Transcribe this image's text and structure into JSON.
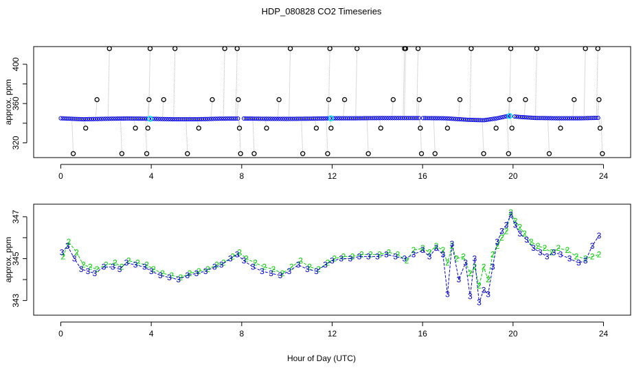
{
  "chart_data": [
    {
      "type": "line",
      "title": "HDP_080828  CO2 Timeseries",
      "xlabel": "",
      "ylabel": "approx. ppm",
      "xlim": [
        -1.2,
        25.2
      ],
      "ylim": [
        305,
        418
      ],
      "xticks": [
        0,
        4,
        8,
        12,
        16,
        20,
        24
      ],
      "xtick_labels": [
        "0",
        "4",
        "8",
        "12",
        "16",
        "20",
        "24"
      ],
      "yticks": [
        320,
        340,
        360,
        380,
        400
      ],
      "ytick_labels": [
        "320",
        "",
        "360",
        "",
        "400"
      ],
      "colors": {
        "baseline": "#0000ee",
        "marker": "#00e5ee",
        "spike": "#000000",
        "connector": "#b3b3b3"
      },
      "baseline": {
        "x": [
          0,
          1,
          2,
          3,
          4,
          5,
          6,
          7,
          8,
          9,
          10,
          11,
          12,
          13,
          14,
          15,
          16,
          17,
          18,
          18.7,
          19.3,
          19.8,
          20.2,
          21,
          22,
          23,
          23.8
        ],
        "y": [
          345,
          344,
          344.5,
          344.8,
          344.5,
          344,
          344,
          344.6,
          344.8,
          344.5,
          344.4,
          344.6,
          345,
          345,
          345.2,
          345.2,
          345.2,
          345,
          343.5,
          343,
          345,
          347.5,
          346.5,
          345.3,
          345,
          345,
          345.5
        ]
      },
      "markers_x": [
        3.95,
        11.95,
        19.85
      ],
      "spikes": {
        "x": [
          0.55,
          1.1,
          1.6,
          2.15,
          2.7,
          3.3,
          3.8,
          3.85,
          3.9,
          3.95,
          4.55,
          5.05,
          5.6,
          6.1,
          6.7,
          7.25,
          7.8,
          7.85,
          7.9,
          7.95,
          8.55,
          9.1,
          9.65,
          10.15,
          10.7,
          11.3,
          11.8,
          11.85,
          11.9,
          11.95,
          12.55,
          13.1,
          13.6,
          14.15,
          14.7,
          15.2,
          15.25,
          15.8,
          15.85,
          15.9,
          15.95,
          16.55,
          17.1,
          17.65,
          18.15,
          18.7,
          19.25,
          19.8,
          19.85,
          19.9,
          19.95,
          20.55,
          21.05,
          21.6,
          22.1,
          22.7,
          23.2,
          23.75,
          23.8,
          23.85,
          23.95
        ],
        "y": [
          309,
          335,
          364,
          416,
          309,
          335,
          309,
          335,
          364,
          416,
          364,
          416,
          309,
          335,
          364,
          416,
          416,
          364,
          335,
          309,
          309,
          335,
          364,
          416,
          309,
          335,
          309,
          364,
          416,
          335,
          364,
          416,
          309,
          335,
          364,
          416,
          416,
          416,
          364,
          335,
          309,
          309,
          335,
          364,
          416,
          309,
          335,
          309,
          364,
          416,
          335,
          364,
          416,
          309,
          335,
          364,
          416,
          416,
          364,
          335,
          309
        ]
      }
    },
    {
      "type": "line",
      "title": "",
      "xlabel": "Hour of Day (UTC)",
      "ylabel": "approx. ppm",
      "xlim": [
        -1.2,
        25.2
      ],
      "ylim": [
        342.3,
        347.6
      ],
      "xticks": [
        0,
        4,
        8,
        12,
        16,
        20,
        24
      ],
      "xtick_labels": [
        "0",
        "4",
        "8",
        "12",
        "16",
        "20",
        "24"
      ],
      "yticks": [
        343,
        344,
        345,
        346,
        347
      ],
      "ytick_labels": [
        "343",
        "",
        "345",
        "",
        "347"
      ],
      "series": [
        {
          "name": "2",
          "color": "#00cd00",
          "x": [
            0.1,
            0.35,
            0.7,
            1.0,
            1.3,
            1.6,
            2.0,
            2.4,
            2.7,
            3.0,
            3.4,
            3.8,
            4.1,
            4.5,
            4.9,
            5.3,
            5.7,
            6.1,
            6.5,
            6.9,
            7.2,
            7.6,
            7.9,
            8.2,
            8.6,
            9.0,
            9.4,
            9.8,
            10.2,
            10.6,
            11.0,
            11.4,
            11.8,
            12.1,
            12.5,
            12.9,
            13.3,
            13.7,
            14.1,
            14.5,
            14.9,
            15.3,
            15.6,
            16.0,
            16.3,
            16.6,
            16.9,
            17.1,
            17.3,
            17.5,
            17.8,
            18.1,
            18.3,
            18.5,
            18.7,
            18.9,
            19.1,
            19.3,
            19.5,
            19.7,
            19.9,
            20.1,
            20.3,
            20.5,
            20.8,
            21.1,
            21.4,
            21.7,
            22.0,
            22.4,
            22.8,
            23.2,
            23.5,
            23.8
          ],
          "y": [
            345.1,
            345.8,
            345.3,
            344.7,
            344.6,
            344.5,
            344.7,
            344.8,
            344.6,
            344.9,
            344.8,
            344.7,
            344.5,
            344.3,
            344.2,
            344.1,
            344.3,
            344.4,
            344.5,
            344.7,
            344.8,
            345.1,
            345.3,
            345.0,
            344.8,
            344.6,
            344.5,
            344.3,
            344.6,
            344.9,
            344.6,
            344.5,
            344.8,
            345.0,
            345.1,
            345.1,
            345.2,
            345.2,
            345.2,
            345.3,
            345.2,
            344.9,
            345.4,
            345.5,
            345.3,
            345.6,
            345.4,
            344.8,
            345.6,
            345.0,
            345.1,
            344.3,
            344.6,
            343.7,
            344.6,
            344.0,
            345.2,
            345.6,
            346.0,
            346.3,
            347.2,
            346.8,
            346.5,
            346.2,
            345.8,
            345.6,
            345.5,
            345.3,
            345.5,
            345.4,
            345.1,
            345.0,
            345.1,
            345.2
          ]
        },
        {
          "name": "3",
          "color": "#0000cd",
          "x": [
            0.05,
            0.3,
            0.6,
            0.9,
            1.2,
            1.5,
            1.9,
            2.3,
            2.6,
            2.9,
            3.3,
            3.7,
            4.0,
            4.4,
            4.8,
            5.2,
            5.6,
            6.0,
            6.4,
            6.8,
            7.1,
            7.5,
            7.8,
            8.1,
            8.5,
            8.9,
            9.3,
            9.7,
            10.1,
            10.5,
            10.9,
            11.3,
            11.7,
            12.0,
            12.4,
            12.8,
            13.2,
            13.6,
            14.0,
            14.4,
            14.8,
            15.2,
            15.6,
            16.0,
            16.3,
            16.6,
            16.9,
            17.1,
            17.3,
            17.6,
            17.9,
            18.1,
            18.3,
            18.5,
            18.7,
            18.9,
            19.1,
            19.3,
            19.5,
            19.7,
            19.9,
            20.1,
            20.3,
            20.6,
            20.9,
            21.2,
            21.5,
            21.8,
            22.1,
            22.5,
            22.9,
            23.2,
            23.5,
            23.8
          ],
          "y": [
            345.3,
            345.6,
            345.0,
            344.5,
            344.4,
            344.3,
            344.6,
            344.6,
            344.5,
            344.8,
            344.7,
            344.6,
            344.4,
            344.2,
            344.1,
            344.0,
            344.2,
            344.3,
            344.4,
            344.6,
            344.7,
            345.0,
            345.2,
            344.9,
            344.6,
            344.4,
            344.3,
            344.2,
            344.4,
            344.7,
            344.5,
            344.4,
            344.7,
            344.9,
            345.0,
            345.0,
            345.1,
            345.1,
            345.1,
            345.2,
            345.1,
            345.0,
            345.2,
            345.4,
            345.1,
            345.5,
            345.2,
            343.3,
            345.7,
            344.0,
            344.8,
            343.2,
            345.0,
            342.9,
            343.5,
            343.3,
            344.6,
            345.8,
            346.3,
            346.6,
            347.1,
            346.6,
            346.2,
            345.9,
            345.5,
            345.3,
            345.1,
            345.3,
            345.2,
            345.0,
            344.8,
            344.9,
            345.6,
            346.1
          ]
        }
      ]
    }
  ]
}
